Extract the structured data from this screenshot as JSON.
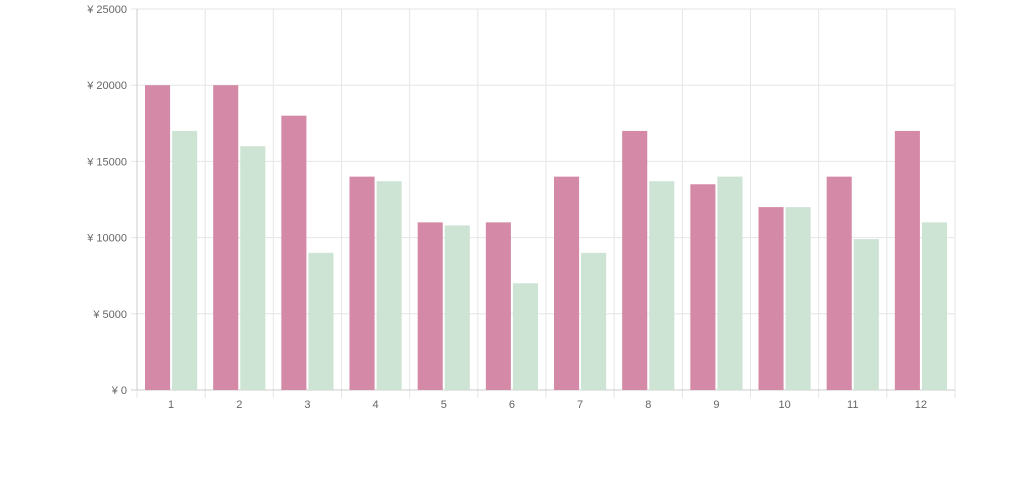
{
  "chart_data": {
    "type": "bar",
    "title": "",
    "xlabel": "",
    "ylabel": "",
    "categories": [
      "1",
      "2",
      "3",
      "4",
      "5",
      "6",
      "7",
      "8",
      "9",
      "10",
      "11",
      "12"
    ],
    "series": [
      {
        "color": "#d48aa6",
        "values": [
          20000,
          20000,
          18000,
          14000,
          11000,
          11000,
          14000,
          17000,
          13500,
          12000,
          14000,
          17000
        ]
      },
      {
        "color": "#cde3d4",
        "values": [
          17000,
          16000,
          9000,
          13700,
          10800,
          7000,
          9000,
          13700,
          14000,
          12000,
          9900,
          11000
        ]
      }
    ],
    "ylim": [
      0,
      25000
    ],
    "yticks": [
      "¥ 0",
      "¥ 5000",
      "¥ 10000",
      "¥ 15000",
      "¥ 20000",
      "¥ 25000"
    ],
    "ytick_values": [
      0,
      5000,
      10000,
      15000,
      20000,
      25000
    ],
    "grid": true,
    "colors": {
      "grid": "#e6e6e6",
      "axis": "#cccccc",
      "tick_text": "#666666"
    }
  }
}
